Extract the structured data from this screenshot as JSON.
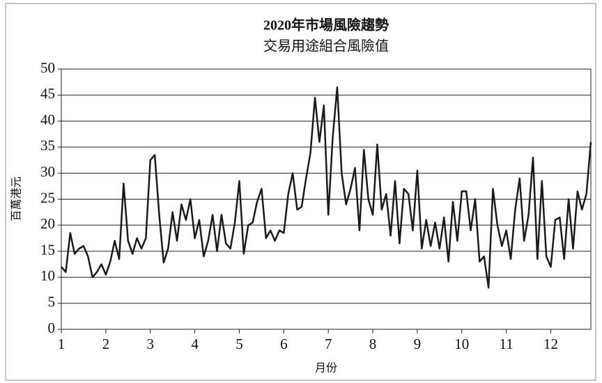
{
  "chart_data": {
    "type": "line",
    "title": "2020年市場風險趨勢",
    "subtitle": "交易用途組合風險值",
    "x_label": "月份",
    "y_label": "百萬港元",
    "x": [
      1.0,
      1.1,
      1.2,
      1.3,
      1.4,
      1.5,
      1.6,
      1.7,
      1.8,
      1.9,
      2.0,
      2.1,
      2.2,
      2.3,
      2.4,
      2.5,
      2.6,
      2.7,
      2.8,
      2.9,
      3.0,
      3.1,
      3.2,
      3.3,
      3.4,
      3.5,
      3.6,
      3.7,
      3.8,
      3.9,
      4.0,
      4.1,
      4.2,
      4.3,
      4.4,
      4.5,
      4.6,
      4.7,
      4.8,
      4.9,
      5.0,
      5.1,
      5.2,
      5.3,
      5.4,
      5.5,
      5.6,
      5.7,
      5.8,
      5.9,
      6.0,
      6.1,
      6.2,
      6.3,
      6.4,
      6.5,
      6.6,
      6.7,
      6.8,
      6.9,
      7.0,
      7.1,
      7.2,
      7.3,
      7.4,
      7.5,
      7.6,
      7.7,
      7.8,
      7.9,
      8.0,
      8.1,
      8.2,
      8.3,
      8.4,
      8.5,
      8.6,
      8.7,
      8.8,
      8.9,
      9.0,
      9.1,
      9.2,
      9.3,
      9.4,
      9.5,
      9.6,
      9.7,
      9.8,
      9.9,
      10.0,
      10.1,
      10.2,
      10.3,
      10.4,
      10.5,
      10.6,
      10.7,
      10.8,
      10.9,
      11.0,
      11.1,
      11.2,
      11.3,
      11.4,
      11.5,
      11.6,
      11.7,
      11.8,
      11.9,
      12.0,
      12.1,
      12.2,
      12.3,
      12.4,
      12.5,
      12.6,
      12.7,
      12.8,
      12.9
    ],
    "series": [
      {
        "name": "風險值",
        "color": "#1a1a1a",
        "values": [
          12,
          11,
          18.5,
          14.5,
          15.5,
          16,
          14,
          10,
          11,
          12.5,
          10.5,
          13,
          17,
          13.5,
          28,
          17,
          14.5,
          17.5,
          15.5,
          17.5,
          32.5,
          33.5,
          22,
          12.8,
          15.5,
          22.5,
          17,
          24,
          21,
          25,
          17.5,
          21,
          14,
          17,
          22,
          15,
          22,
          16.5,
          15.5,
          20.5,
          28.5,
          14.5,
          20,
          20.5,
          24.5,
          27,
          17.5,
          19,
          17,
          19,
          18.5,
          26,
          30,
          23,
          23.5,
          29,
          34,
          44.5,
          36,
          43,
          22,
          37,
          46.5,
          30,
          24,
          27,
          31,
          19,
          34.5,
          25,
          22,
          35.5,
          23,
          26,
          18,
          28.5,
          16.5,
          27,
          26,
          19,
          30.5,
          15.5,
          21,
          16,
          20.5,
          15.5,
          21.5,
          13,
          24.5,
          17,
          26.5,
          26.5,
          19,
          25,
          13,
          14,
          8,
          27,
          20,
          16,
          19,
          13.5,
          23,
          29,
          17,
          22,
          33,
          13.5,
          28.5,
          14,
          12,
          21,
          21.5,
          13.5,
          25,
          15.5,
          26.5,
          23,
          26,
          36
        ]
      }
    ],
    "xlim": [
      1,
      12.9
    ],
    "xticks": [
      1,
      2,
      3,
      4,
      5,
      6,
      7,
      8,
      9,
      10,
      11,
      12
    ],
    "ylim": [
      0,
      50
    ],
    "yticks": [
      0,
      5,
      10,
      15,
      20,
      25,
      30,
      35,
      40,
      45,
      50
    ],
    "grid": true
  }
}
